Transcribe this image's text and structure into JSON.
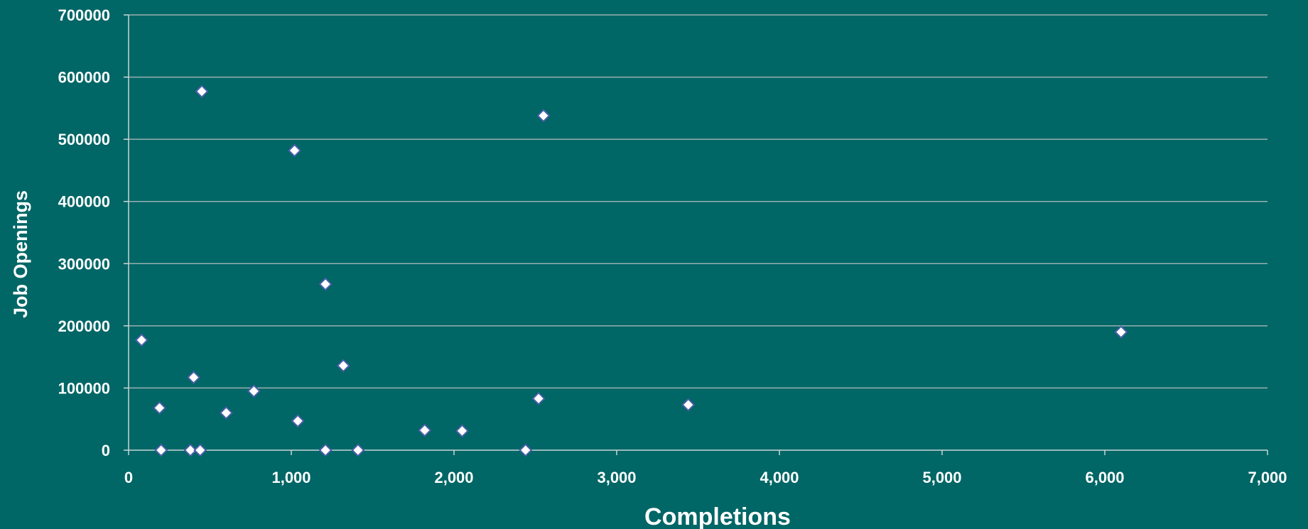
{
  "chart_data": {
    "type": "scatter",
    "title": "",
    "xlabel": "Completions",
    "ylabel": "Job Openings",
    "xlim": [
      0,
      7000
    ],
    "ylim": [
      0,
      700000
    ],
    "grid": "horizontal",
    "legend": "none",
    "x_ticks": [
      0,
      1000,
      2000,
      3000,
      4000,
      5000,
      6000,
      7000
    ],
    "x_tick_labels": [
      "0",
      "1,000",
      "2,000",
      "3,000",
      "4,000",
      "5,000",
      "6,000",
      "7,000"
    ],
    "y_ticks": [
      0,
      100000,
      200000,
      300000,
      400000,
      500000,
      600000,
      700000
    ],
    "y_tick_labels": [
      "0",
      "100000",
      "200000",
      "300000",
      "400000",
      "500000",
      "600000",
      "700000"
    ],
    "series": [
      {
        "points": [
          [
            80,
            177000
          ],
          [
            190,
            68000
          ],
          [
            200,
            0
          ],
          [
            380,
            0
          ],
          [
            400,
            117000
          ],
          [
            440,
            0
          ],
          [
            450,
            577000
          ],
          [
            600,
            60000
          ],
          [
            770,
            95000
          ],
          [
            1020,
            482000
          ],
          [
            1040,
            47000
          ],
          [
            1210,
            267000
          ],
          [
            1210,
            0
          ],
          [
            1320,
            136000
          ],
          [
            1410,
            0
          ],
          [
            1820,
            32000
          ],
          [
            2050,
            31000
          ],
          [
            2440,
            0
          ],
          [
            2520,
            83000
          ],
          [
            2550,
            538000
          ],
          [
            3440,
            73000
          ],
          [
            6100,
            190000
          ]
        ]
      }
    ],
    "colors": {
      "background": "#006666",
      "marker_fill": "#ffffff",
      "marker_stroke": "#4a5fa8",
      "gridline": "#9ab0b0",
      "text": "#ffffff"
    }
  }
}
